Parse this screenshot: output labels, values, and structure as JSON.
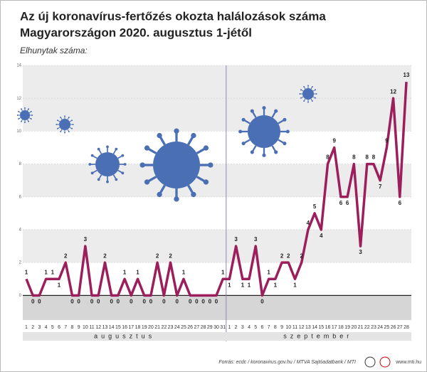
{
  "chart_data": {
    "type": "line",
    "title": [
      "Az új koronavírus-fertőzés okozta halálozások száma",
      "Magyarországon 2020. augusztus 1-jétől"
    ],
    "subtitle": "Elhunytak száma:",
    "categories": [
      "1",
      "2",
      "3",
      "4",
      "5",
      "6",
      "7",
      "8",
      "9",
      "10",
      "11",
      "12",
      "13",
      "14",
      "15",
      "16",
      "17",
      "18",
      "19",
      "20",
      "21",
      "22",
      "23",
      "24",
      "25",
      "26",
      "27",
      "28",
      "29",
      "30",
      "31",
      "1",
      "2",
      "3",
      "4",
      "5",
      "6",
      "7",
      "8",
      "9",
      "10",
      "11",
      "12",
      "13",
      "14",
      "15",
      "16",
      "17",
      "18",
      "19",
      "20",
      "21",
      "22",
      "23",
      "24",
      "25",
      "26",
      "27",
      "28"
    ],
    "months": [
      "augusztus",
      "szeptember"
    ],
    "series": [
      {
        "name": "Elhunytak",
        "color": "#9c1f5c",
        "values": [
          1,
          0,
          0,
          1,
          1,
          1,
          2,
          0,
          0,
          3,
          0,
          0,
          2,
          0,
          0,
          1,
          0,
          1,
          0,
          0,
          2,
          0,
          2,
          0,
          1,
          0,
          0,
          0,
          0,
          0,
          1,
          1,
          3,
          1,
          1,
          3,
          0,
          1,
          1,
          2,
          2,
          1,
          2,
          4,
          5,
          4,
          8,
          9,
          6,
          6,
          8,
          3,
          8,
          8,
          7,
          9,
          12,
          6,
          13
        ]
      }
    ],
    "ylim": [
      -1.5,
      14
    ],
    "yticks": [
      0,
      2,
      4,
      6,
      8,
      10,
      12,
      14
    ],
    "grid": true,
    "source": "Forrás: ecdc / koronavirus.gov.hu / MTVA Sajtóadatbank / MTI",
    "site": "www.mti.hu"
  }
}
